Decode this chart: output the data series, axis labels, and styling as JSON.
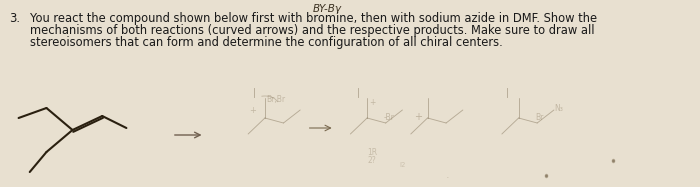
{
  "bg_color": "#e8e0d0",
  "text_color": "#1a1a1a",
  "mol_color": "#2a2010",
  "sketch_color": "#8a7a60",
  "number": "3.",
  "line1": "You react the compound shown below first with bromine, then with sodium azide in DMF. Show the",
  "line2": "mechanisms of both reactions (curved arrows) and the respective products. Make sure to draw all",
  "line3": "stereoisomers that can form and determine the configuration of all chiral centers.",
  "header": "BY-Bγ",
  "text_fontsize": 8.3,
  "header_fontsize": 7.5,
  "fig_width": 7.0,
  "fig_height": 1.87,
  "dpi": 100
}
